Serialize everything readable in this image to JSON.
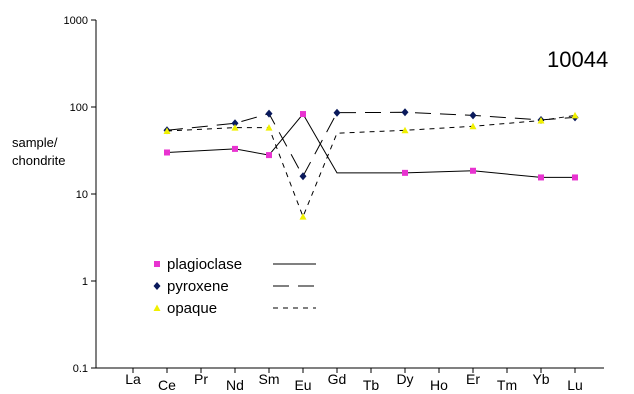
{
  "chart_data": {
    "type": "line",
    "y_scale": "log",
    "ylim": [
      0.1,
      1000
    ],
    "y_ticks": [
      "0.1",
      "1",
      "10",
      "100",
      "1000"
    ],
    "ylabel": [
      "sample/",
      "chondrite"
    ],
    "sample_label": "10044",
    "grid": false,
    "legend_position": "bottom-left",
    "categories": [
      "La",
      "Ce",
      "Pr",
      "Nd",
      "Sm",
      "Eu",
      "Gd",
      "Tb",
      "Dy",
      "Ho",
      "Er",
      "Tm",
      "Yb",
      "Lu"
    ],
    "series": [
      {
        "name": "plagioclase",
        "marker": "square",
        "marker_color": "#e833d0",
        "line_style": "solid",
        "points": [
          {
            "x": "Ce",
            "y": 30
          },
          {
            "x": "Nd",
            "y": 33
          },
          {
            "x": "Sm",
            "y": 28
          },
          {
            "x": "Eu",
            "y": 83
          },
          {
            "x": "Gd",
            "y": 17.5,
            "marker": false
          },
          {
            "x": "Dy",
            "y": 17.5
          },
          {
            "x": "Er",
            "y": 18.5
          },
          {
            "x": "Yb",
            "y": 15.5
          },
          {
            "x": "Lu",
            "y": 15.5
          }
        ]
      },
      {
        "name": "pyroxene",
        "marker": "diamond",
        "marker_color": "#0a1a5c",
        "line_style": "longdash",
        "points": [
          {
            "x": "Ce",
            "y": 54
          },
          {
            "x": "Nd",
            "y": 65
          },
          {
            "x": "Sm",
            "y": 84
          },
          {
            "x": "Eu",
            "y": 16
          },
          {
            "x": "Gd",
            "y": 86
          },
          {
            "x": "Dy",
            "y": 87
          },
          {
            "x": "Er",
            "y": 80
          },
          {
            "x": "Yb",
            "y": 71
          },
          {
            "x": "Lu",
            "y": 76
          }
        ]
      },
      {
        "name": "opaque",
        "marker": "triangle",
        "marker_color": "#f0f000",
        "line_style": "shortdash",
        "points": [
          {
            "x": "Ce",
            "y": 53
          },
          {
            "x": "Nd",
            "y": 58
          },
          {
            "x": "Sm",
            "y": 58
          },
          {
            "x": "Eu",
            "y": 5.5
          },
          {
            "x": "Gd",
            "y": 50,
            "marker": false
          },
          {
            "x": "Dy",
            "y": 54
          },
          {
            "x": "Er",
            "y": 60
          },
          {
            "x": "Yb",
            "y": 70
          },
          {
            "x": "Lu",
            "y": 80
          }
        ]
      }
    ]
  }
}
